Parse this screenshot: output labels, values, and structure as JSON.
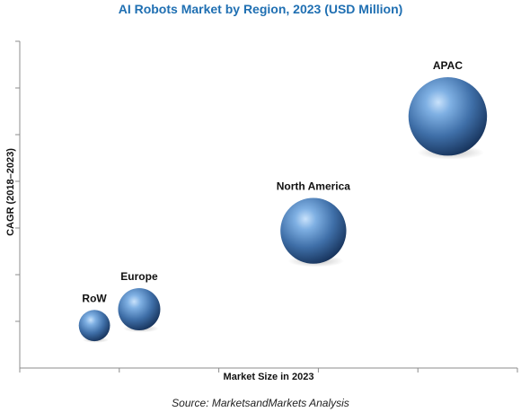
{
  "chart_data": {
    "type": "bubble",
    "title": "AI Robots Market by Region, 2023 (USD Million)",
    "xlabel": "Market Size in 2023",
    "ylabel": "CAGR (2018–2023)",
    "points": [
      {
        "label": "RoW",
        "x": 0.15,
        "y": 0.13,
        "size": 0.37
      },
      {
        "label": "Europe",
        "x": 0.24,
        "y": 0.18,
        "size": 0.5
      },
      {
        "label": "North America",
        "x": 0.59,
        "y": 0.42,
        "size": 0.78
      },
      {
        "label": "APAC",
        "x": 0.86,
        "y": 0.77,
        "size": 0.93
      }
    ],
    "xlim": [
      0,
      1
    ],
    "ylim": [
      0,
      1
    ],
    "grid": false,
    "bubble_color": "#3f6fa8"
  },
  "footer": {
    "source": "Source: MarketsandMarkets  Analysis"
  }
}
